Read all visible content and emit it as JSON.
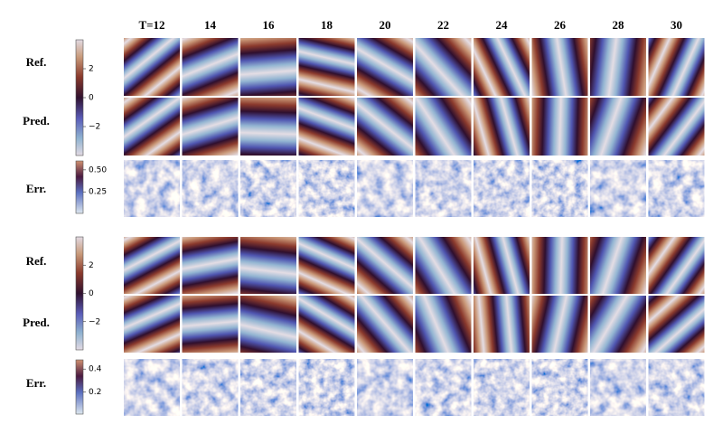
{
  "header": {
    "columns": [
      "T=12",
      "14",
      "16",
      "18",
      "20",
      "22",
      "24",
      "26",
      "28",
      "30"
    ]
  },
  "blocks": [
    {
      "rows": [
        "Ref.",
        "Pred.",
        "Err."
      ],
      "colorbars": [
        {
          "ticks": [
            "2",
            "0",
            "−2"
          ]
        },
        {
          "ticks": [
            "0.50",
            "0.25"
          ]
        }
      ]
    },
    {
      "rows": [
        "Ref.",
        "Pred.",
        "Err."
      ],
      "colorbars": [
        {
          "ticks": [
            "2",
            "0",
            "−2"
          ]
        },
        {
          "ticks": [
            "0.4",
            "0.2"
          ]
        }
      ]
    }
  ]
}
